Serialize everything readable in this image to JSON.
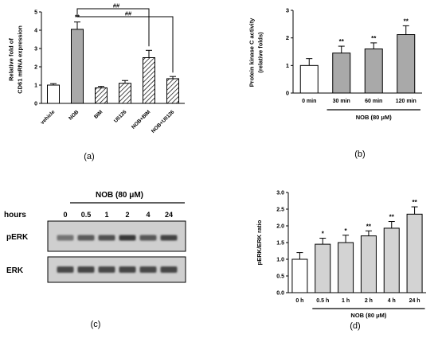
{
  "chart_data": [
    {
      "type": "bar",
      "panel_label": "(a)",
      "ylabel": "Relative fold of\nCD61 mRNA expression",
      "ylim": [
        0,
        5
      ],
      "yticks": [
        "0",
        "1",
        "2",
        "3",
        "4",
        "5"
      ],
      "categories": [
        "vehicle",
        "NOB",
        "BIM",
        "U0126",
        "NOB+BIM",
        "NOB+U0126"
      ],
      "values": [
        1.0,
        4.05,
        0.85,
        1.1,
        2.5,
        1.35
      ],
      "errors": [
        0.08,
        0.4,
        0.08,
        0.15,
        0.4,
        0.12
      ],
      "fills": [
        "white",
        "gray",
        "hatch",
        "hatch",
        "hatch",
        "hatch"
      ],
      "bar_labels": [
        "",
        "**",
        "",
        "",
        "",
        ""
      ],
      "comparisons": [
        {
          "from": 1,
          "to": 4,
          "label": "##"
        },
        {
          "from": 1,
          "to": 5,
          "label": "##"
        }
      ]
    },
    {
      "type": "bar",
      "panel_label": "(b)",
      "ylabel": "Protein kinase C activity\n(relative folds)",
      "ylim": [
        0,
        3
      ],
      "yticks": [
        "0",
        "1",
        "2",
        "3"
      ],
      "categories": [
        "0 min",
        "30 min",
        "60 min",
        "120 min"
      ],
      "values": [
        1.0,
        1.45,
        1.6,
        2.12
      ],
      "errors": [
        0.25,
        0.25,
        0.22,
        0.32
      ],
      "fills": [
        "white",
        "gray",
        "gray",
        "gray"
      ],
      "bar_labels": [
        "",
        "**",
        "**",
        "**"
      ],
      "group_label": "NOB (80 μM)",
      "group_from": 1,
      "group_to": 3
    },
    {
      "type": "bar",
      "panel_label": "(d)",
      "ylabel": "pERK/ERK ratio",
      "ylim": [
        0,
        3
      ],
      "yticks": [
        "0.0",
        "0.5",
        "1.0",
        "1.5",
        "2.0",
        "2.5",
        "3.0"
      ],
      "categories": [
        "0 h",
        "0.5 h",
        "1 h",
        "2 h",
        "4 h",
        "24 h"
      ],
      "values": [
        1.0,
        1.45,
        1.5,
        1.7,
        1.93,
        2.35
      ],
      "errors": [
        0.2,
        0.18,
        0.22,
        0.15,
        0.2,
        0.22
      ],
      "fills": [
        "white",
        "light",
        "light",
        "light",
        "light",
        "light"
      ],
      "bar_labels": [
        "",
        "*",
        "*",
        "**",
        "**",
        "**"
      ],
      "group_label": "NOB (80 μM)",
      "group_from": 1,
      "group_to": 5
    }
  ],
  "blot": {
    "panel_label": "(c)",
    "treatment_label": "NOB (80 μM)",
    "hours_label": "hours",
    "lanes": [
      "0",
      "0.5",
      "1",
      "2",
      "4",
      "24"
    ],
    "rows": [
      {
        "label": "pERK",
        "intensities": [
          0.55,
          0.7,
          0.78,
          0.9,
          0.72,
          0.85
        ]
      },
      {
        "label": "ERK",
        "intensities": [
          0.82,
          0.84,
          0.82,
          0.84,
          0.82,
          0.83
        ]
      }
    ]
  },
  "colors": {
    "gray_bar": "#a9a9a9",
    "light_bar": "#d3d3d3",
    "white_bar": "#ffffff",
    "axis": "#000000",
    "blot_bg": "#cfcfcf",
    "band": "#2a2a2a"
  }
}
